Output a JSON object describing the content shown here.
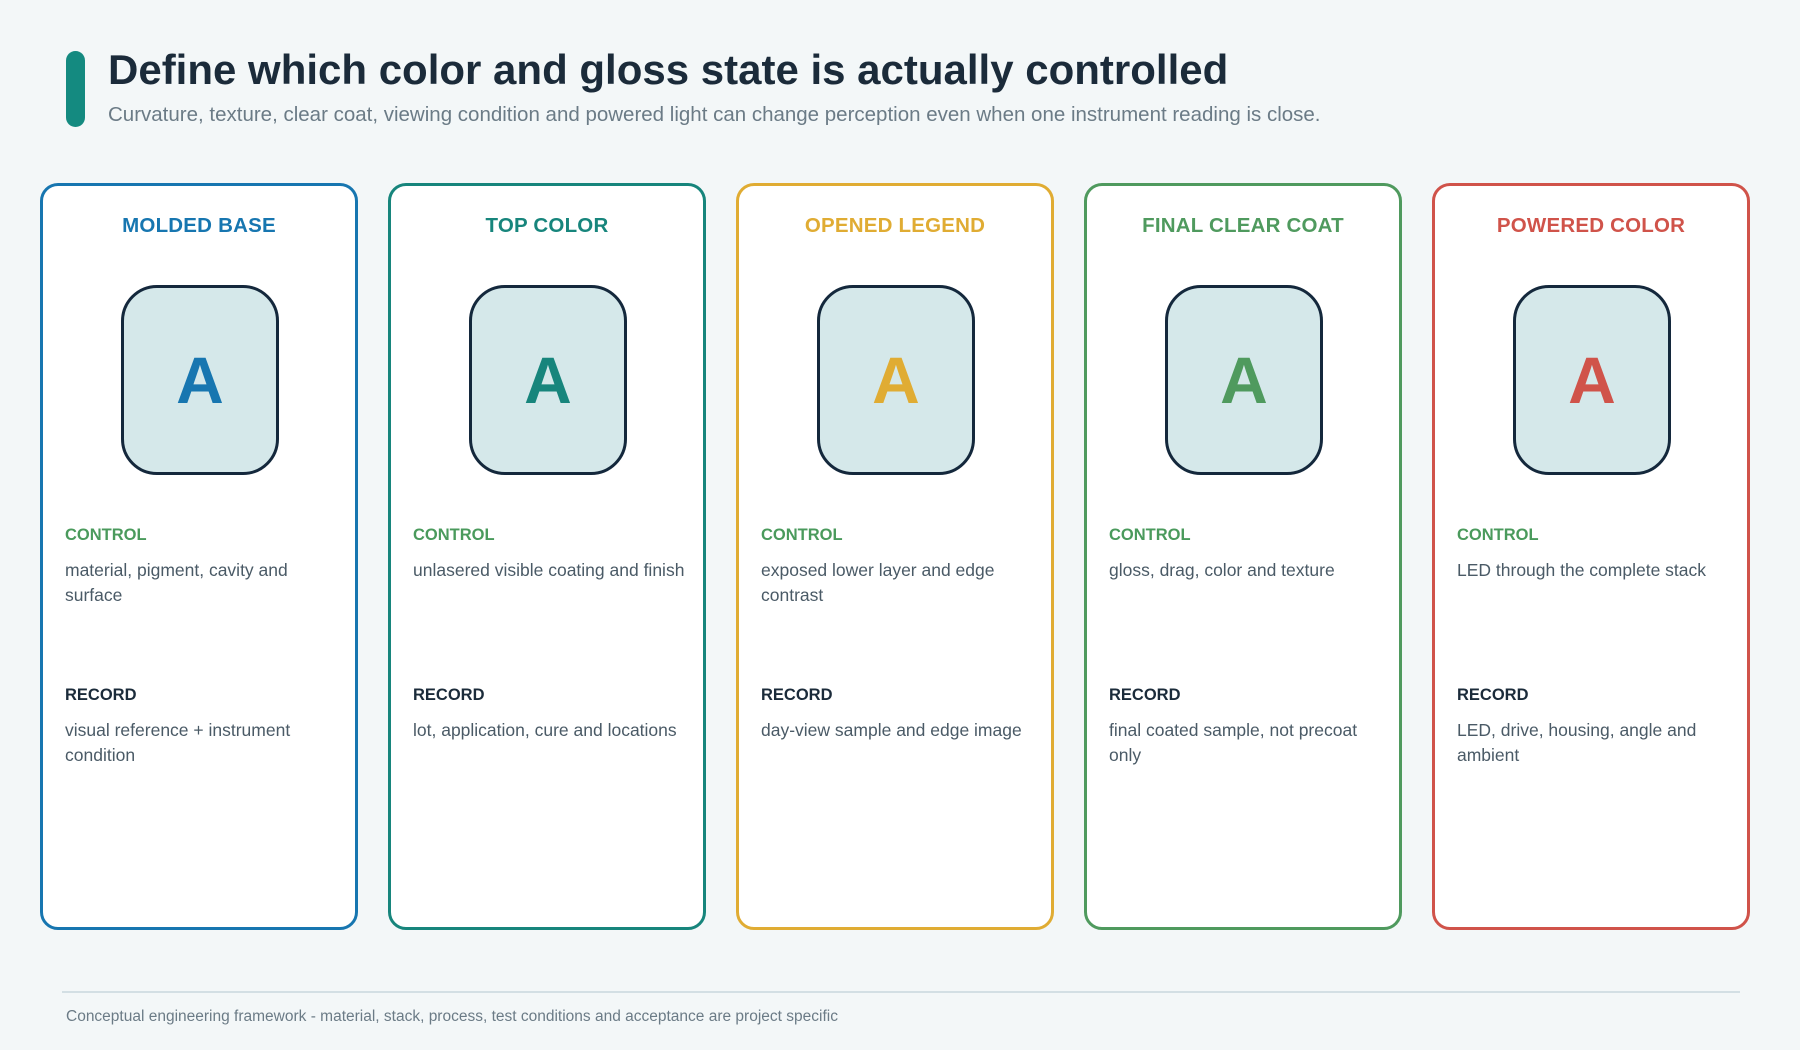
{
  "header": {
    "title": "Define which color and gloss state is actually controlled",
    "subtitle": "Curvature, texture, clear coat, viewing condition and powered light can change perception even when one instrument reading is close.",
    "accent_color": "#148a80"
  },
  "cards": [
    {
      "title": "MOLDED BASE",
      "color": "#1776b0",
      "keycap_letter": "A",
      "control_label": "CONTROL",
      "control_text": "material, pigment, cavity and surface",
      "record_label": "RECORD",
      "record_text": "visual reference + instrument condition"
    },
    {
      "title": "TOP COLOR",
      "color": "#17857c",
      "keycap_letter": "A",
      "control_label": "CONTROL",
      "control_text": "unlasered visible coating and finish",
      "record_label": "RECORD",
      "record_text": "lot, application, cure and locations"
    },
    {
      "title": "OPENED LEGEND",
      "color": "#e0ac33",
      "keycap_letter": "A",
      "control_label": "CONTROL",
      "control_text": "exposed lower layer and edge contrast",
      "record_label": "RECORD",
      "record_text": "day-view sample and edge image"
    },
    {
      "title": "FINAL CLEAR COAT",
      "color": "#4f9a5e",
      "keycap_letter": "A",
      "control_label": "CONTROL",
      "control_text": "gloss, drag, color and texture",
      "record_label": "RECORD",
      "record_text": "final coated sample, not precoat only"
    },
    {
      "title": "POWERED COLOR",
      "color": "#d0534a",
      "keycap_letter": "A",
      "control_label": "CONTROL",
      "control_text": "LED through the complete stack",
      "record_label": "RECORD",
      "record_text": "LED, drive, housing, angle and ambient"
    }
  ],
  "footer": {
    "text": "Conceptual engineering framework - material, stack, process, test conditions and acceptance are project specific"
  }
}
